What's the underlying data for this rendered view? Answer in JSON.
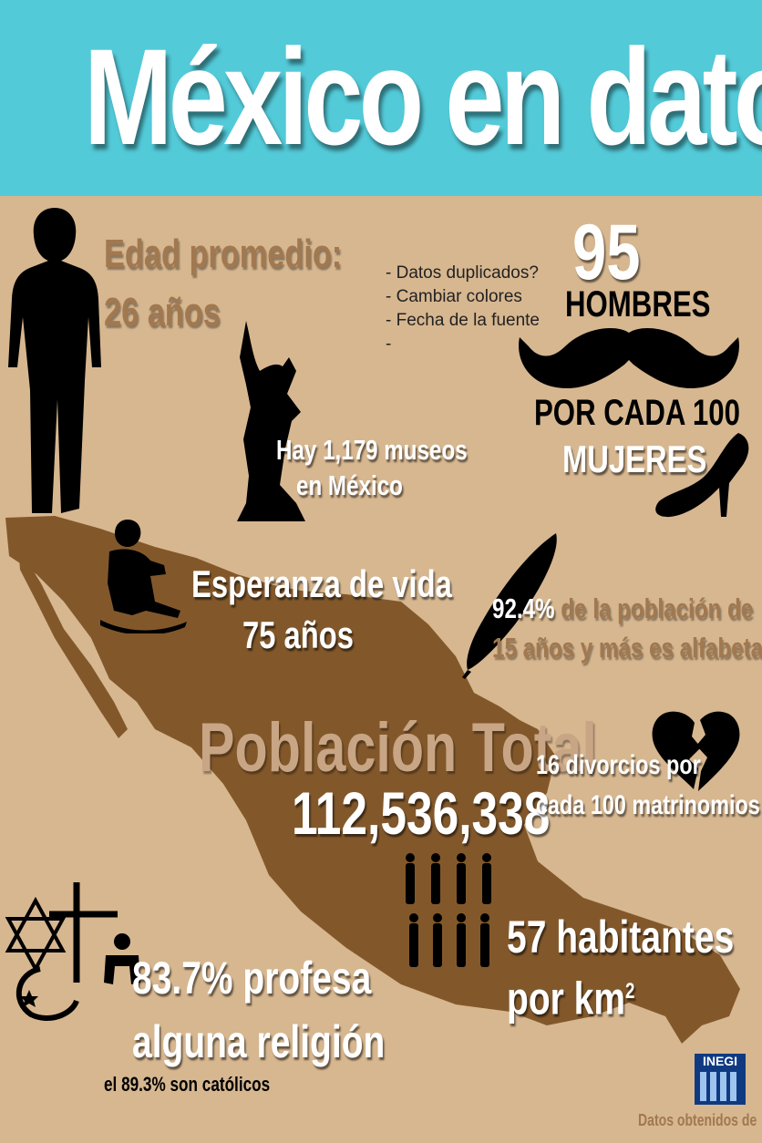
{
  "title": "México en datos",
  "edad": {
    "label": "Edad promedio:",
    "value": "26 años"
  },
  "notes": [
    "- Datos duplicados?",
    "- Cambiar colores",
    "- Fecha de la fuente",
    "-"
  ],
  "hombres": {
    "number": "95",
    "label": "HOMBRES",
    "line1": "POR CADA 100",
    "line2": "MUJERES"
  },
  "museos": {
    "line1": "Hay 1,179 museos",
    "line2": "en México"
  },
  "esperanza": {
    "line1": "Esperanza de vida",
    "line2": "75 años"
  },
  "alfabeta": {
    "pct": "92.4%",
    "rest1": " de la población de",
    "line2a": "15 años",
    "line2b": " y más es alfabeta"
  },
  "poblacion": {
    "label": "Población Total",
    "value": "112,536,338"
  },
  "divorcios": {
    "line1": "16 divorcios por",
    "line2": "cada 100 matrinomios"
  },
  "habitantes": {
    "line1": "57 habitantes",
    "line2": "por km",
    "sup": "2"
  },
  "religion": {
    "line1": "83.7% profesa",
    "line2": "alguna religión",
    "line3": "el 89.3% son católicos"
  },
  "source": {
    "logo": "INEGI",
    "label": "Datos obtenidos de"
  },
  "colors": {
    "banner": "#53cad8",
    "background": "#d7b790",
    "map": "#82582b",
    "accent_text": "#a1784f"
  }
}
